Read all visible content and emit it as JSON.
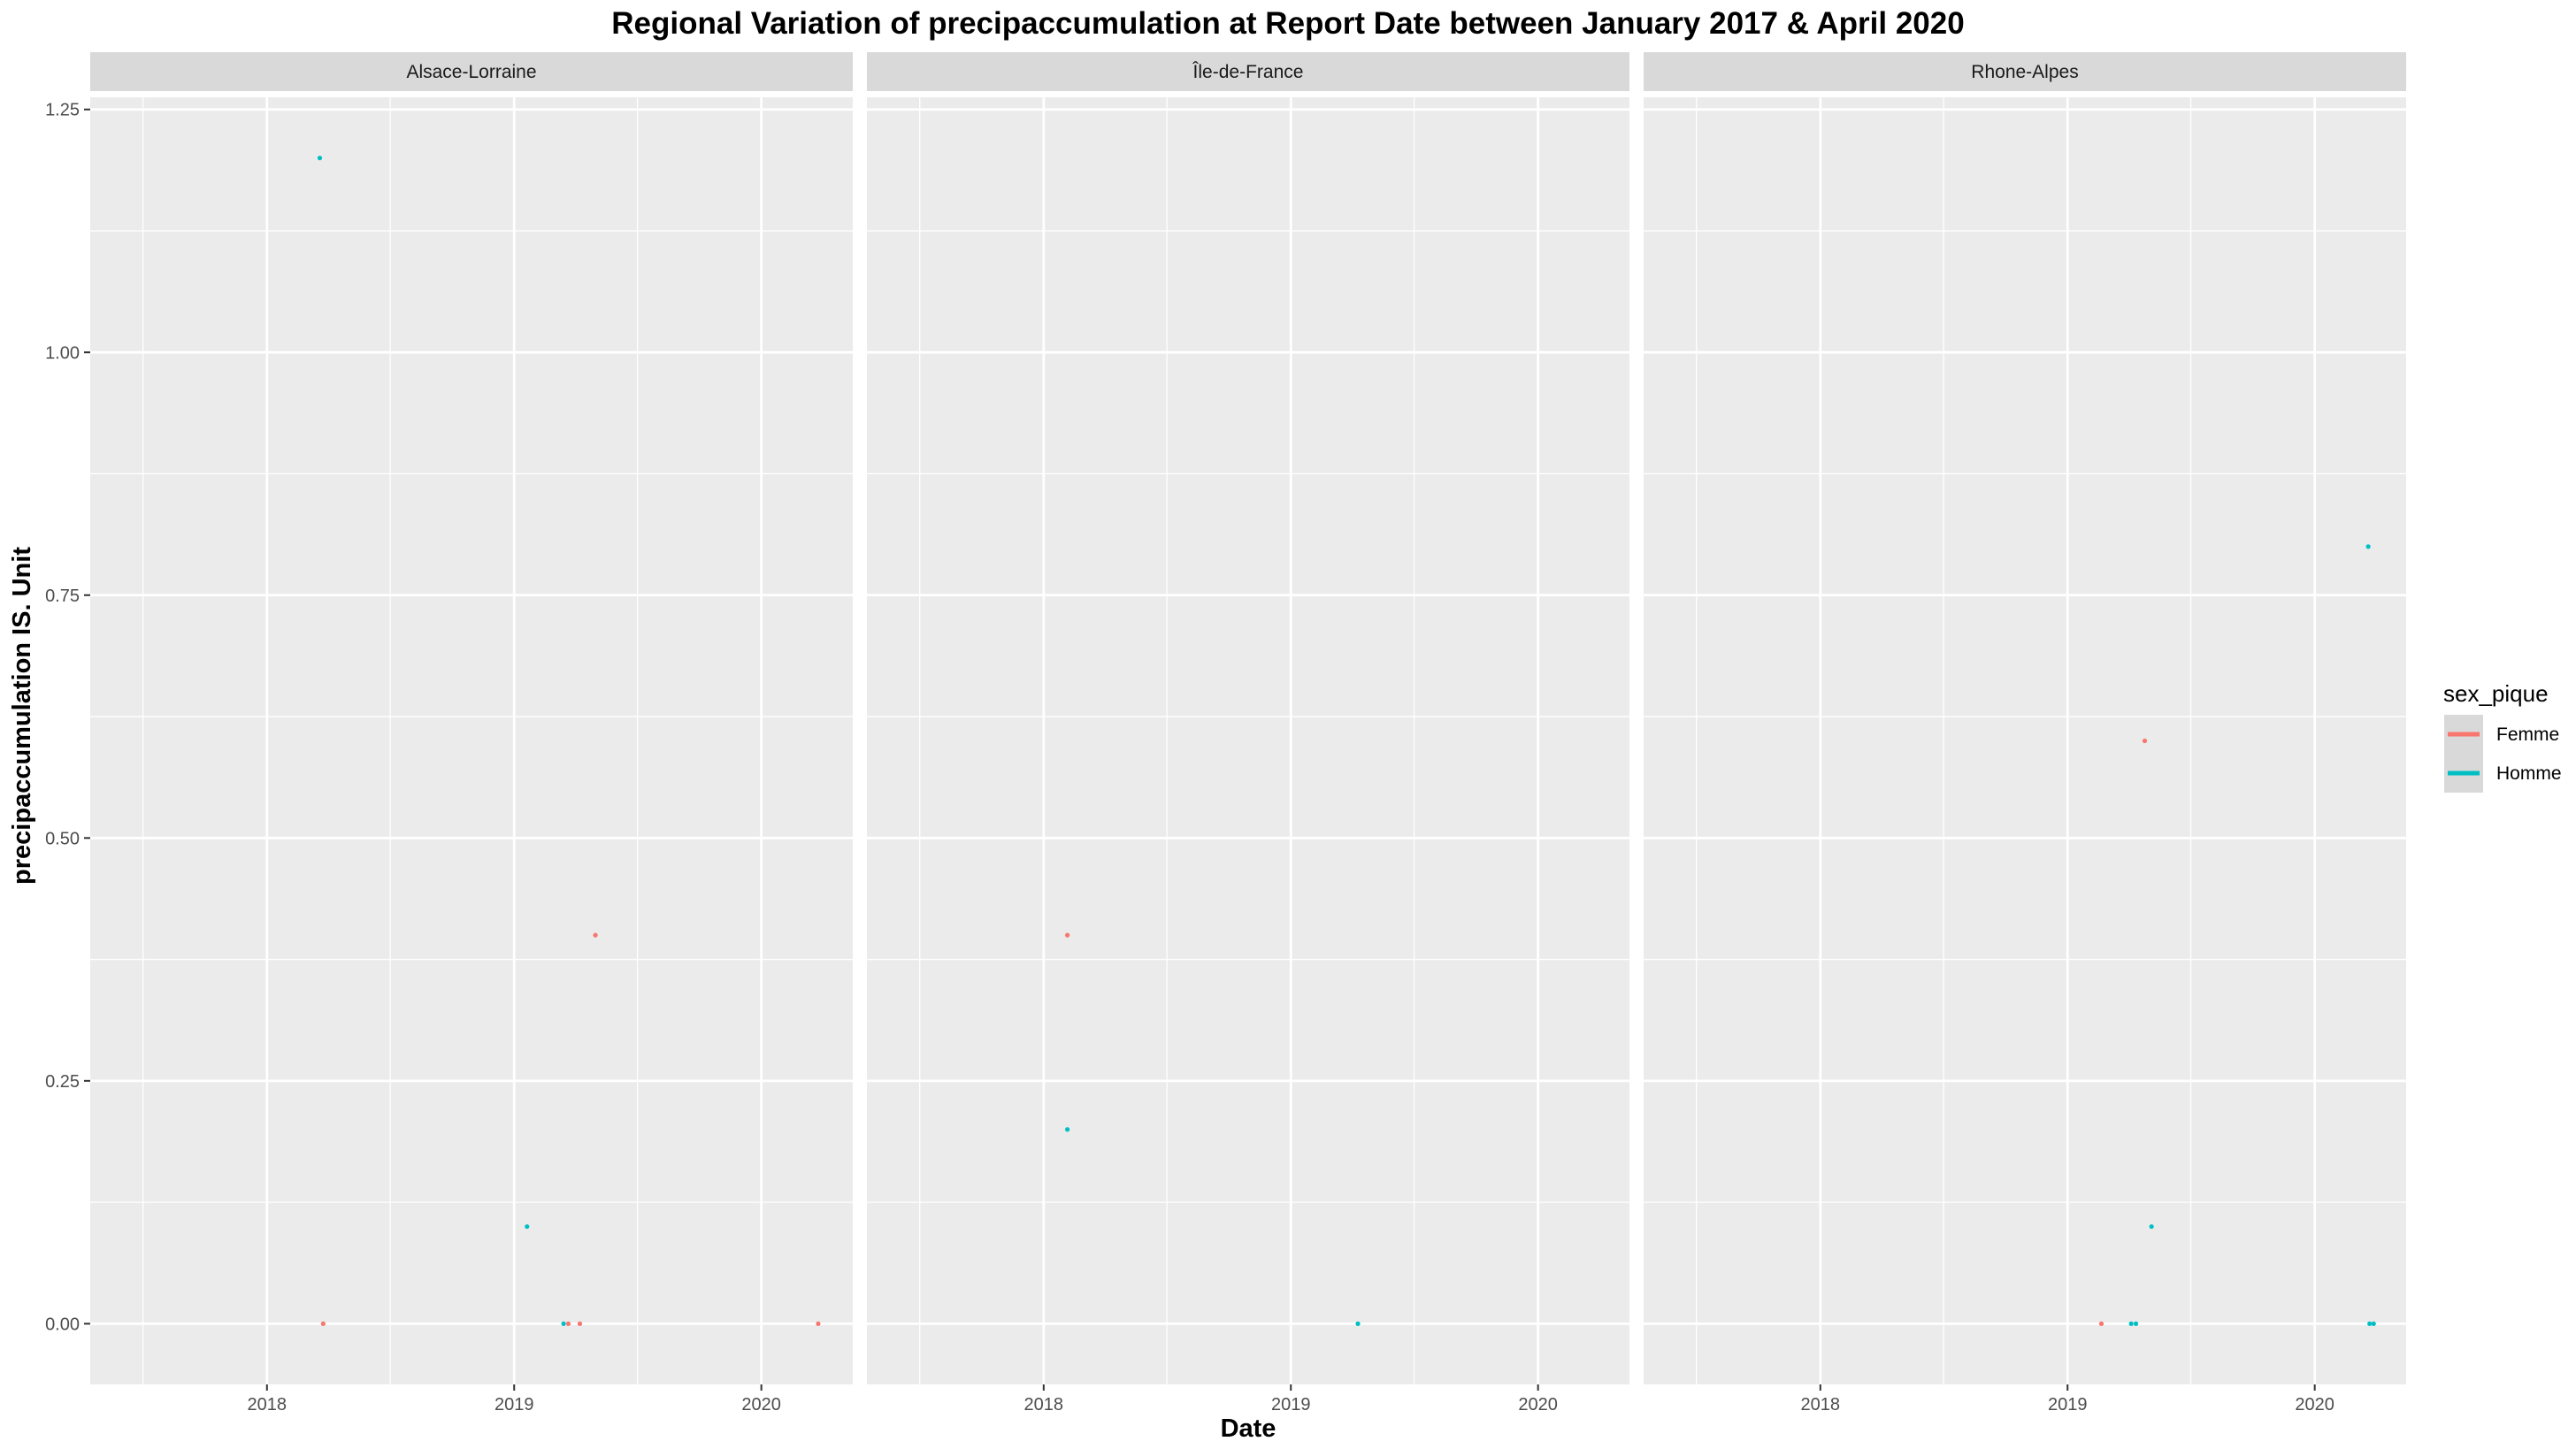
{
  "chart_data": {
    "type": "scatter",
    "title": "Regional Variation of  precipaccumulation  at Report Date between January 2017 & April 2020",
    "xlabel": "Date",
    "ylabel": "precipaccumulation  IS. Unit",
    "xlim": [
      "2017-04-15",
      "2020-05-15"
    ],
    "ylim": [
      -0.0625,
      1.2625
    ],
    "x_ticks": [
      {
        "value": "2018-01-01",
        "label": "2018"
      },
      {
        "value": "2019-01-01",
        "label": "2019"
      },
      {
        "value": "2020-01-01",
        "label": "2020"
      }
    ],
    "y_ticks": [
      {
        "value": 0,
        "label": "0.00"
      },
      {
        "value": 0.25,
        "label": "0.25"
      },
      {
        "value": 0.5,
        "label": "0.50"
      },
      {
        "value": 0.75,
        "label": "0.75"
      },
      {
        "value": 1.0,
        "label": "1.00"
      },
      {
        "value": 1.25,
        "label": "1.25"
      }
    ],
    "grid": true,
    "legend": {
      "title": "sex_pique",
      "placement": "right",
      "entries": [
        {
          "name": "Femme",
          "color": "#F8766D"
        },
        {
          "name": "Homme",
          "color": "#00BFC4"
        }
      ]
    },
    "panels": [
      {
        "name": "Alsace-Lorraine",
        "points": [
          {
            "x": "2018-03-20",
            "y": 1.2,
            "series": "Homme"
          },
          {
            "x": "2018-03-25",
            "y": 0.0,
            "series": "Femme"
          },
          {
            "x": "2019-01-20",
            "y": 0.1,
            "series": "Homme"
          },
          {
            "x": "2019-03-15",
            "y": 0.0,
            "series": "Homme"
          },
          {
            "x": "2019-03-22",
            "y": 0.0,
            "series": "Femme"
          },
          {
            "x": "2019-04-08",
            "y": 0.0,
            "series": "Femme"
          },
          {
            "x": "2019-05-01",
            "y": 0.4,
            "series": "Femme"
          },
          {
            "x": "2020-03-25",
            "y": 0.0,
            "series": "Femme"
          }
        ]
      },
      {
        "name": "Île-de-France",
        "points": [
          {
            "x": "2018-02-05",
            "y": 0.4,
            "series": "Femme"
          },
          {
            "x": "2018-02-05",
            "y": 0.2,
            "series": "Homme"
          },
          {
            "x": "2019-04-10",
            "y": 0.0,
            "series": "Homme"
          }
        ]
      },
      {
        "name": "Rhone-Alpes",
        "points": [
          {
            "x": "2019-02-20",
            "y": 0.0,
            "series": "Femme"
          },
          {
            "x": "2019-04-05",
            "y": 0.0,
            "series": "Homme"
          },
          {
            "x": "2019-04-12",
            "y": 0.0,
            "series": "Homme"
          },
          {
            "x": "2019-04-25",
            "y": 0.6,
            "series": "Femme"
          },
          {
            "x": "2019-05-05",
            "y": 0.1,
            "series": "Homme"
          },
          {
            "x": "2020-03-20",
            "y": 0.8,
            "series": "Homme"
          },
          {
            "x": "2020-03-22",
            "y": 0.0,
            "series": "Homme"
          },
          {
            "x": "2020-03-28",
            "y": 0.0,
            "series": "Homme"
          }
        ]
      }
    ]
  }
}
